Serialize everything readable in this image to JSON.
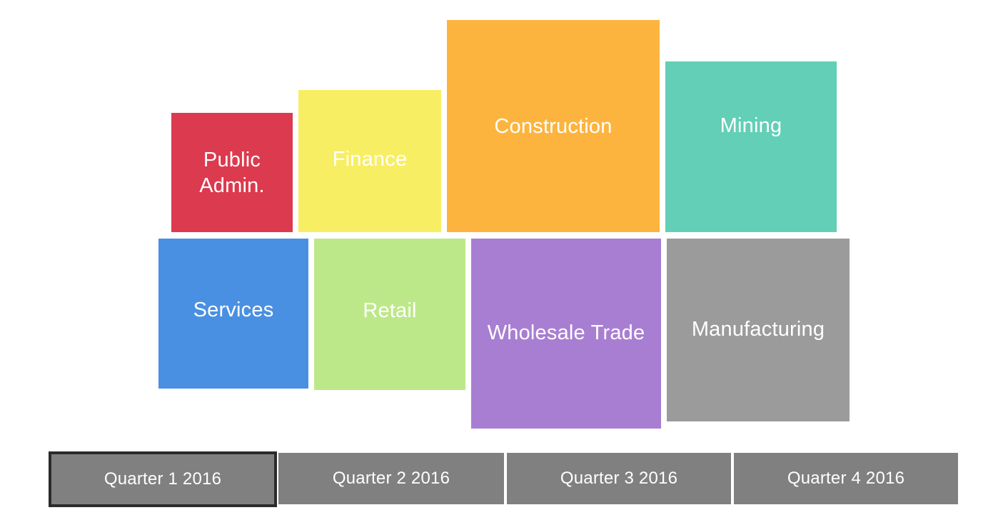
{
  "colors": {
    "public_admin": "#dc3a4e",
    "finance": "#f7ee64",
    "construction": "#fdb43e",
    "mining": "#62cfb6",
    "services": "#4a90e2",
    "retail": "#bde889",
    "wholesale_trade": "#a87ed2",
    "manufacturing": "#9b9b9b",
    "quarter_button": "#808080",
    "quarter_active_border": "#2b2b2b"
  },
  "tiles": {
    "public_admin": "Public\nAdmin.",
    "finance": "Finance",
    "construction": "Construction",
    "mining": "Mining",
    "services": "Services",
    "retail": "Retail",
    "wholesale_trade": "Wholesale Trade",
    "manufacturing": "Manufacturing"
  },
  "quarters": {
    "q1": "Quarter 1 2016",
    "q2": "Quarter 2 2016",
    "q3": "Quarter 3 2016",
    "q4": "Quarter 4 2016",
    "selected": "Quarter 1 2016"
  }
}
